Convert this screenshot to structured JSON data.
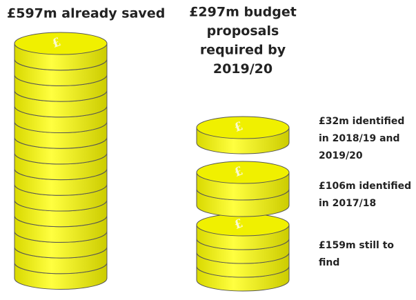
{
  "left_stack": {
    "label": "£597m already saved"
  },
  "right_stack": {
    "label_lines": [
      "£297m budget",
      "proposals",
      "required  by",
      "2019/20"
    ]
  },
  "coin_symbol": "£",
  "segments": [
    {
      "label_lines": [
        "£32m identified",
        "in 2018/19 and",
        "2019/20"
      ]
    },
    {
      "label_lines": [
        "£106m identified",
        "in 2017/18"
      ]
    },
    {
      "label_lines": [
        "£159m still  to",
        "find"
      ]
    }
  ]
}
